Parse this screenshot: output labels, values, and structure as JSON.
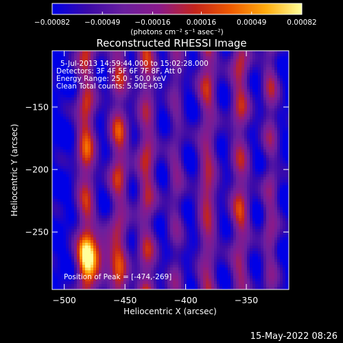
{
  "chart_data": {
    "type": "heatmap",
    "title": "Reconstructed RHESSI Image",
    "xlabel": "Heliocentric X (arcsec)",
    "ylabel": "Heliocentric Y (arcsec)",
    "xlim": [
      -510,
      -315
    ],
    "ylim": [
      -296,
      -105
    ],
    "x_ticks": [
      -500,
      -450,
      -400,
      -350
    ],
    "y_ticks": [
      -150,
      -200,
      -250
    ],
    "colorbar": {
      "range": [
        -0.00082,
        0.00082
      ],
      "tick_values": [
        -0.00082,
        -0.00049,
        -0.00016,
        0.00016,
        0.00049,
        0.00082
      ],
      "tick_labels": [
        "-0.00082",
        "-0.00049",
        "-0.00016",
        "0.00016",
        "0.00049",
        "0.00082"
      ],
      "unit_label": "(photons cm⁻² s⁻¹ asec⁻²)",
      "colors": [
        "#0000e6",
        "#3b0aa8",
        "#6a1f9e",
        "#8a1a8a",
        "#c4241c",
        "#ef5a00",
        "#ffac0e",
        "#ffff9a"
      ]
    },
    "annotations": [
      "5-Jul-2013 14:59:44.000 to 15:02:28.000",
      "Detectors: 3F 4F 5F 6F 7F 8F, Att 0",
      "Energy Range: 25.0 - 50.0 keV",
      "Clean    Total counts: 5.90E+03"
    ],
    "peak_label": "Position of Peak = [-474,-269]",
    "peak": {
      "x": -474,
      "y": -269
    },
    "grid": false,
    "stripes": [
      {
        "x": -482,
        "amp": 1.0,
        "width": 8
      },
      {
        "x": -455,
        "amp": 0.9,
        "width": 8
      },
      {
        "x": -432,
        "amp": 0.85,
        "width": 8
      },
      {
        "x": -408,
        "amp": 0.55,
        "width": 7
      },
      {
        "x": -382,
        "amp": 0.85,
        "width": 8
      },
      {
        "x": -355,
        "amp": 0.85,
        "width": 8
      },
      {
        "x": -330,
        "amp": 0.65,
        "width": 7
      }
    ]
  },
  "footer_date": "15-May-2022 08:26"
}
